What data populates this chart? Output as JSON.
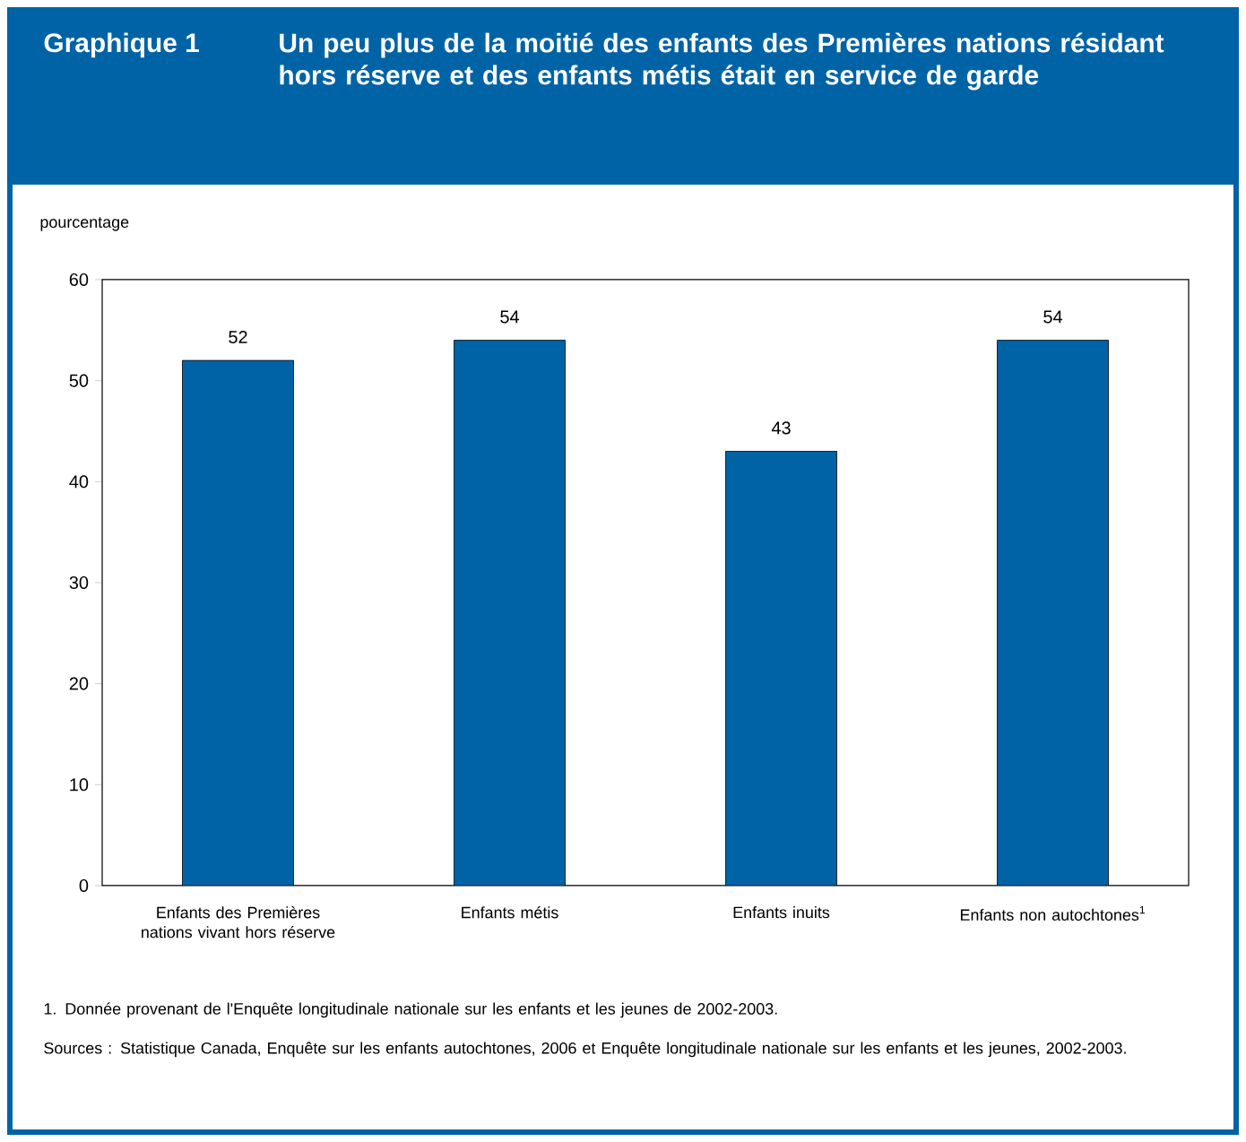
{
  "chart_data": {
    "type": "bar",
    "title": "Graphique 1",
    "subtitle": "Un peu plus de la moitié des enfants des Premières nations résidant hors réserve et des enfants métis était en service de garde",
    "ylabel": "pourcentage",
    "categories": [
      "Enfants des Premières nations vivant hors réserve",
      "Enfants métis",
      "Enfants inuits",
      "Enfants non autochtones$^{1}$"
    ],
    "values": [
      52,
      54,
      43,
      54
    ],
    "color": "#0063a6",
    "ylim": [
      0,
      60
    ],
    "yticks": [
      0,
      10,
      20,
      30,
      40,
      50,
      60
    ],
    "data_labels": true,
    "annotations": [
      "1. Donnée provenant de l'Enquête longitudinale nationale sur les enfants et les jeunes de 2002-2003.",
      "Sources : Statistique Canada, Enquête sur les enfants autochtones, 2006 et Enquête longitudinale nationale sur les enfants et les jeunes, 2002-2003."
    ]
  }
}
